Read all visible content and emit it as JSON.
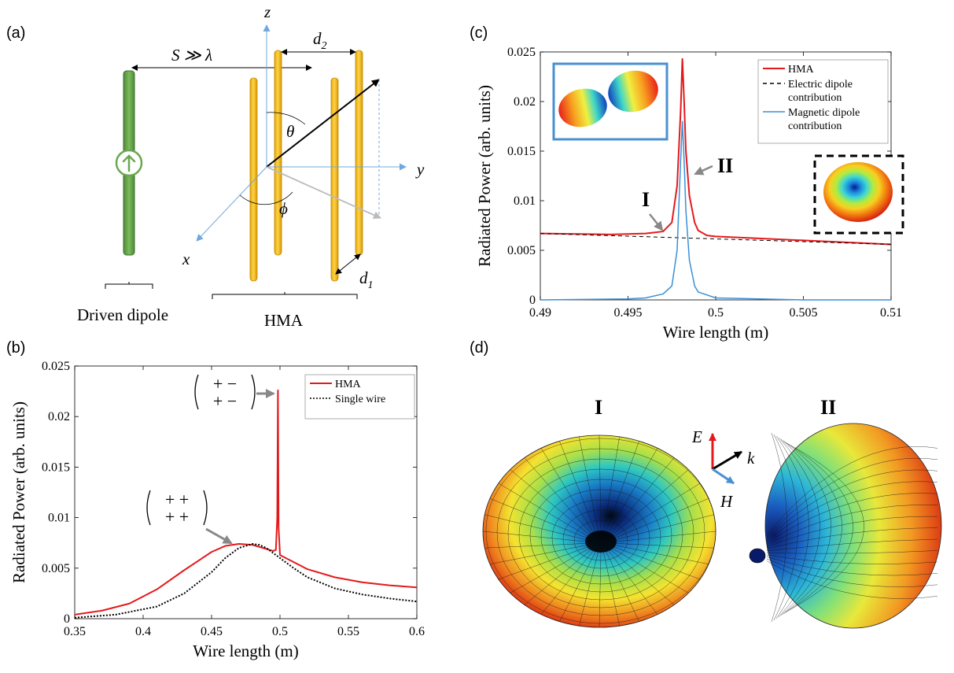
{
  "panels": {
    "a": {
      "label": "(a)",
      "axis_labels": {
        "z": "z",
        "y": "y",
        "x": "x"
      },
      "separation_label": "S ≫ λ",
      "d1_label": "d",
      "d1_sub": "1",
      "d2_label": "d",
      "d2_sub": "2",
      "theta_label": "θ",
      "phi_label": "ϕ",
      "driven_label": "Driven dipole",
      "hma_label": "HMA",
      "colors": {
        "driven": "#6aa84f",
        "wire": "#f1c232",
        "axis": "#6fa8dc"
      }
    },
    "b": {
      "label": "(b)"
    },
    "c": {
      "label": "(c)"
    },
    "d": {
      "label": "(d)",
      "label_I": "I",
      "label_II": "II",
      "field_E": "E",
      "field_k": "k",
      "field_H": "H"
    }
  },
  "chart_data": [
    {
      "id": "b",
      "type": "line",
      "xlabel": "Wire length (m)",
      "ylabel": "Radiated Power (arb. units)",
      "xlim": [
        0.35,
        0.6
      ],
      "ylim": [
        0,
        0.025
      ],
      "xticks": [
        "0.35",
        "0.4",
        "0.45",
        "0.5",
        "0.55",
        "0.6"
      ],
      "yticks": [
        "0",
        "0.005",
        "0.01",
        "0.015",
        "0.02",
        "0.025"
      ],
      "legend_position": "top-right",
      "series": [
        {
          "name": "HMA",
          "color": "#e31a1c",
          "style": "solid",
          "x": [
            0.35,
            0.37,
            0.39,
            0.41,
            0.43,
            0.45,
            0.46,
            0.47,
            0.48,
            0.49,
            0.495,
            0.497,
            0.498,
            0.4985,
            0.499,
            0.5,
            0.51,
            0.52,
            0.54,
            0.56,
            0.58,
            0.6
          ],
          "y": [
            0.0004,
            0.0008,
            0.0015,
            0.0029,
            0.0048,
            0.0066,
            0.0072,
            0.0074,
            0.0073,
            0.0069,
            0.0067,
            0.0068,
            0.01,
            0.0226,
            0.009,
            0.0063,
            0.0056,
            0.0049,
            0.0041,
            0.0036,
            0.0033,
            0.0031
          ]
        },
        {
          "name": "Single wire",
          "color": "#000000",
          "style": "dotted",
          "x": [
            0.35,
            0.38,
            0.41,
            0.43,
            0.45,
            0.46,
            0.47,
            0.48,
            0.485,
            0.49,
            0.5,
            0.51,
            0.52,
            0.54,
            0.56,
            0.58,
            0.6
          ],
          "y": [
            0.0001,
            0.0004,
            0.0012,
            0.0025,
            0.0046,
            0.006,
            0.007,
            0.0074,
            0.0073,
            0.007,
            0.006,
            0.005,
            0.0041,
            0.003,
            0.0024,
            0.002,
            0.0017
          ]
        }
      ],
      "annotations": [
        {
          "text_row1": "+   −",
          "text_row2": "+   −",
          "x": 0.4985,
          "y": 0.0226
        },
        {
          "text_row1": "+   +",
          "text_row2": "+   +",
          "x": 0.47,
          "y": 0.0074
        }
      ]
    },
    {
      "id": "c",
      "type": "line",
      "xlabel": "Wire length (m)",
      "ylabel": "Radiated Power (arb. units)",
      "xlim": [
        0.49,
        0.51
      ],
      "ylim": [
        0,
        0.025
      ],
      "xticks": [
        "0.49",
        "0.495",
        "0.5",
        "0.505",
        "0.51"
      ],
      "yticks": [
        "0",
        "0.005",
        "0.01",
        "0.015",
        "0.02",
        "0.025"
      ],
      "legend_position": "top-right",
      "series": [
        {
          "name": "HMA",
          "color": "#e31a1c",
          "style": "solid",
          "x": [
            0.49,
            0.494,
            0.496,
            0.497,
            0.4975,
            0.4978,
            0.498,
            0.4981,
            0.4982,
            0.4983,
            0.4985,
            0.4988,
            0.499,
            0.4995,
            0.5,
            0.505,
            0.51
          ],
          "y": [
            0.0067,
            0.0066,
            0.0067,
            0.0069,
            0.0078,
            0.0115,
            0.019,
            0.0243,
            0.02,
            0.015,
            0.0105,
            0.0078,
            0.007,
            0.0065,
            0.0064,
            0.006,
            0.0056
          ]
        },
        {
          "name": "Electric dipole contribution",
          "color": "#000000",
          "style": "dashed",
          "x": [
            0.49,
            0.51
          ],
          "y": [
            0.0067,
            0.0056
          ]
        },
        {
          "name": "Magnetic dipole contribution",
          "color": "#3b8fd6",
          "style": "solid",
          "x": [
            0.49,
            0.495,
            0.496,
            0.497,
            0.4975,
            0.4978,
            0.498,
            0.4981,
            0.4982,
            0.4983,
            0.4985,
            0.4988,
            0.499,
            0.5,
            0.505,
            0.51
          ],
          "y": [
            0,
            0.0001,
            0.0002,
            0.0006,
            0.0014,
            0.005,
            0.014,
            0.018,
            0.014,
            0.009,
            0.004,
            0.0014,
            0.0008,
            0.0002,
            0,
            0
          ]
        }
      ],
      "annotations": [
        {
          "text": "I",
          "x": 0.4972,
          "y": 0.0069
        },
        {
          "text": "II",
          "x": 0.4983,
          "y": 0.015
        }
      ]
    }
  ]
}
